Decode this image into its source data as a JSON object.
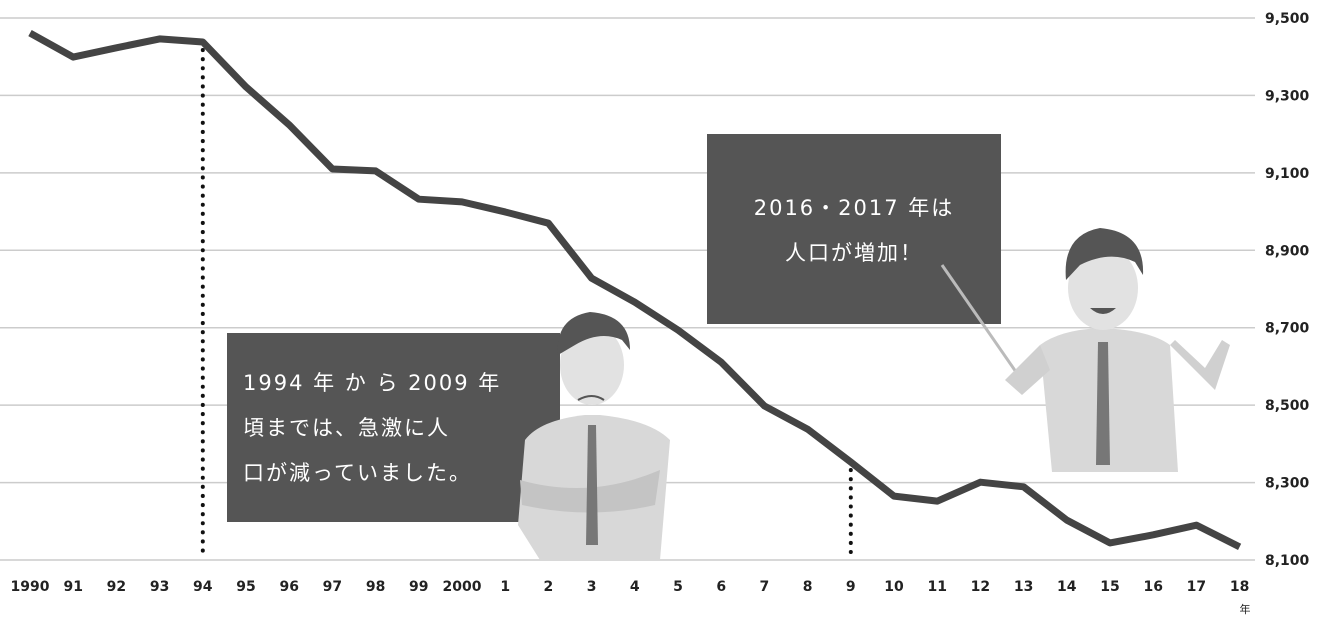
{
  "chart_data": {
    "type": "line",
    "categories": [
      "1990",
      "91",
      "92",
      "93",
      "94",
      "95",
      "96",
      "97",
      "98",
      "99",
      "2000",
      "1",
      "2",
      "3",
      "4",
      "5",
      "6",
      "7",
      "8",
      "9",
      "10",
      "11",
      "12",
      "13",
      "14",
      "15",
      "16",
      "17",
      "18"
    ],
    "x_unit": "年",
    "series": [
      {
        "color": "#444444",
        "values": [
          9461,
          9399,
          9423,
          9446,
          9438,
          9322,
          9224,
          9110,
          9105,
          9032,
          9025,
          8999,
          8970,
          8828,
          8766,
          8694,
          8611,
          8498,
          8438,
          8353,
          8265,
          8252,
          8301,
          8289,
          8203,
          8144,
          8165,
          8190,
          8134
        ]
      }
    ],
    "ylim": [
      8100,
      9500
    ],
    "yticks": [
      {
        "value": 8100,
        "label": "8,100"
      },
      {
        "value": 8300,
        "label": "8,300"
      },
      {
        "value": 8500,
        "label": "8,500"
      },
      {
        "value": 8700,
        "label": "8,700"
      },
      {
        "value": 8900,
        "label": "8,900"
      },
      {
        "value": 9100,
        "label": "9,100"
      },
      {
        "value": 9300,
        "label": "9,300"
      },
      {
        "value": 9500,
        "label": "9,500"
      }
    ],
    "grid": true,
    "annotations": [
      {
        "lines": [
          "1994 年 か ら 2009 年",
          "頃までは、急激に人",
          "口が減っていました。"
        ]
      },
      {
        "lines": [
          "2016・2017 年は",
          "人口が増加！"
        ]
      }
    ]
  }
}
